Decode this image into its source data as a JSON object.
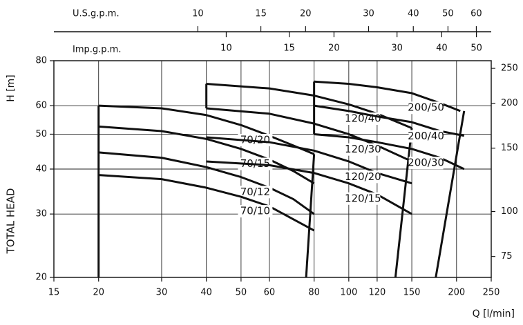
{
  "chart_data": {
    "type": "line",
    "x_label": "Q [l/min]",
    "y_label": "H [m]",
    "y_title": "TOTAL HEAD",
    "log_x": true,
    "log_y": true,
    "grid": true,
    "xlim": [
      15,
      250
    ],
    "xticks": [
      15,
      20,
      30,
      40,
      50,
      60,
      80,
      100,
      120,
      150,
      200,
      250
    ],
    "ylim": [
      20,
      80
    ],
    "yticks": [
      20,
      30,
      40,
      50,
      60,
      80
    ],
    "y2lim": [
      65.6,
      262.5
    ],
    "y2ticks": [
      75,
      100,
      150,
      200,
      250
    ],
    "x2_label": "U.S.g.p.m.",
    "x2lim": [
      3.96,
      66.04
    ],
    "x2ticks": [
      10,
      15,
      20,
      30,
      40,
      50,
      60
    ],
    "x3_label": "Imp.g.p.m.",
    "x3lim": [
      3.3,
      54.99
    ],
    "x3ticks": [
      10,
      15,
      20,
      30,
      40,
      50
    ],
    "series": [
      {
        "name": "70/20",
        "color": "#111111",
        "x": [
          20,
          30,
          40,
          50,
          60,
          70,
          80
        ],
        "values": [
          60,
          59,
          56.5,
          53,
          49.5,
          46.5,
          44
        ]
      },
      {
        "name": "70/15",
        "color": "#111111",
        "x": [
          20,
          30,
          40,
          50,
          60,
          70,
          80
        ],
        "values": [
          52.5,
          51,
          48.5,
          45.5,
          42.5,
          39.5,
          36.5
        ]
      },
      {
        "name": "70/12",
        "color": "#111111",
        "x": [
          20,
          30,
          40,
          50,
          60,
          70,
          80
        ],
        "values": [
          44.5,
          43,
          40.5,
          38,
          35.5,
          33,
          30
        ]
      },
      {
        "name": "70/10",
        "color": "#111111",
        "x": [
          20,
          30,
          40,
          50,
          60,
          70,
          80
        ],
        "values": [
          38.5,
          37.5,
          35.5,
          33.5,
          31.5,
          29,
          27
        ]
      },
      {
        "name": "120/40",
        "color": "#111111",
        "x": [
          40,
          60,
          80,
          100,
          120,
          150
        ],
        "values": [
          69,
          67,
          64,
          60.5,
          57,
          52
        ]
      },
      {
        "name": "120/30",
        "color": "#111111",
        "x": [
          40,
          60,
          80,
          100,
          120,
          150
        ],
        "values": [
          59,
          57,
          53.5,
          50,
          46.5,
          42
        ]
      },
      {
        "name": "120/20",
        "color": "#111111",
        "x": [
          40,
          60,
          80,
          100,
          120,
          150
        ],
        "values": [
          49,
          47.5,
          45,
          42,
          39,
          36.5
        ]
      },
      {
        "name": "120/15",
        "color": "#111111",
        "x": [
          40,
          60,
          80,
          100,
          120,
          150
        ],
        "values": [
          42,
          41,
          39,
          36.5,
          34,
          30
        ]
      },
      {
        "name": "200/50",
        "color": "#111111",
        "x": [
          80,
          100,
          120,
          150,
          180,
          205
        ],
        "values": [
          70,
          69,
          67.5,
          65,
          61,
          58
        ]
      },
      {
        "name": "200/40",
        "color": "#111111",
        "x": [
          80,
          100,
          120,
          150,
          180,
          210
        ],
        "values": [
          60,
          58,
          56,
          54,
          51,
          49.5
        ]
      },
      {
        "name": "200/30",
        "color": "#111111",
        "x": [
          80,
          100,
          120,
          150,
          180,
          210
        ],
        "values": [
          50,
          49,
          47.5,
          45.5,
          43,
          40
        ]
      }
    ],
    "envelopes": [
      {
        "x": [
          20,
          20
        ],
        "values": [
          20,
          60
        ]
      },
      {
        "x": [
          40,
          40
        ],
        "values": [
          59,
          69
        ]
      },
      {
        "x": [
          80,
          80
        ],
        "values": [
          50,
          70
        ]
      },
      {
        "x": [
          76,
          80
        ],
        "values": [
          20,
          44
        ]
      },
      {
        "x": [
          135,
          150
        ],
        "values": [
          20,
          52
        ]
      },
      {
        "x": [
          175,
          210
        ],
        "values": [
          20,
          58
        ]
      }
    ]
  }
}
